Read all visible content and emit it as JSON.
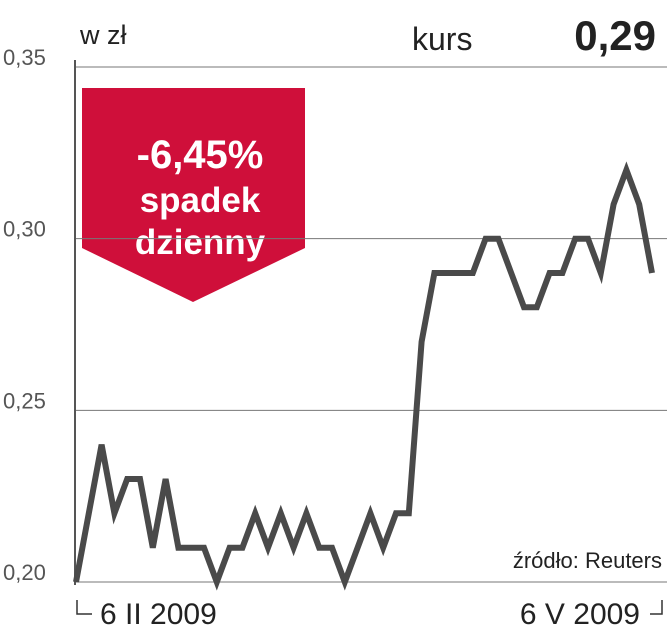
{
  "chart_data": {
    "type": "line",
    "unit_label": "w zł",
    "price_label": "kurs",
    "price": "0,29",
    "change": "-6,45%",
    "change_text": [
      "spadek",
      "dzienny"
    ],
    "source": "źródło: Reuters",
    "categories": [
      "6 II 2009",
      null,
      null,
      null,
      null,
      null,
      null,
      null,
      null,
      null,
      null,
      null,
      null,
      null,
      null,
      null,
      null,
      null,
      null,
      null,
      null,
      null,
      null,
      null,
      null,
      null,
      null,
      null,
      null,
      null,
      null,
      null,
      null,
      null,
      null,
      null,
      null,
      null,
      null,
      null,
      null,
      null,
      null,
      null,
      null,
      "6 V 2009"
    ],
    "values": [
      0.2,
      0.22,
      0.24,
      0.22,
      0.23,
      0.23,
      0.21,
      0.23,
      0.21,
      0.21,
      0.21,
      0.2,
      0.21,
      0.21,
      0.22,
      0.21,
      0.22,
      0.21,
      0.22,
      0.21,
      0.21,
      0.2,
      0.21,
      0.22,
      0.21,
      0.22,
      0.22,
      0.27,
      0.29,
      0.29,
      0.29,
      0.29,
      0.3,
      0.3,
      0.29,
      0.28,
      0.28,
      0.29,
      0.29,
      0.3,
      0.3,
      0.29,
      0.31,
      0.32,
      0.31,
      0.29
    ],
    "color": "#4a4a4a",
    "ylim": [
      0.2,
      0.35
    ],
    "yticks": [
      {
        "value": 0.2,
        "label": "0,20"
      },
      {
        "value": 0.25,
        "label": "0,25"
      },
      {
        "value": 0.3,
        "label": "0,30"
      },
      {
        "value": 0.35,
        "label": "0,35"
      }
    ],
    "grid": true
  }
}
